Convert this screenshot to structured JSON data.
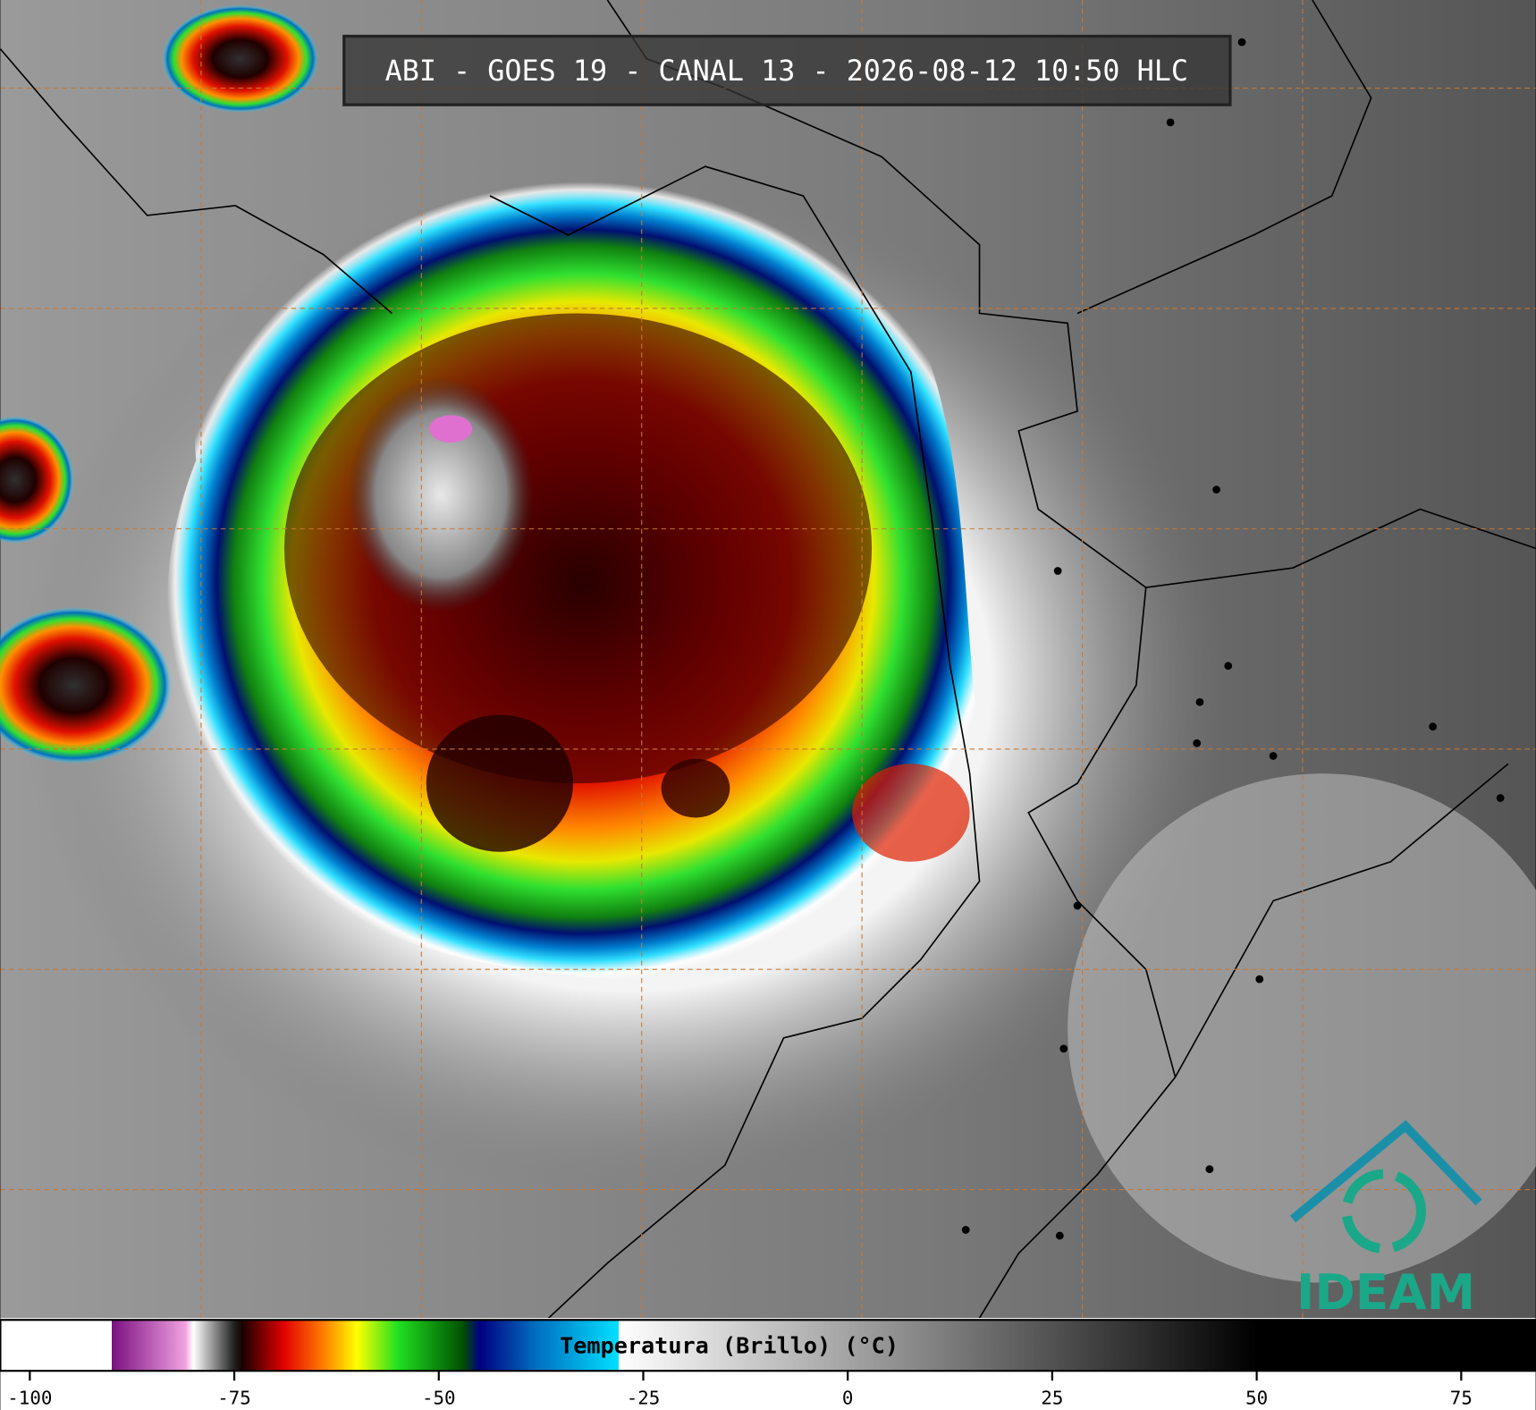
{
  "title": "ABI - GOES 19 - CANAL 13 - 2026-08-12 10:50 HLC",
  "logo": "IDEAM",
  "colorbar": {
    "label": "Temperatura (Brillo) (°C)",
    "xlim": [
      -103.6,
      84.1
    ],
    "xticks": [
      -100,
      -75,
      -50,
      -25,
      0,
      25,
      50,
      75
    ],
    "colorscale": [
      {
        "value": -103.6,
        "color": "#ffffff"
      },
      {
        "value": -90,
        "color": "#ffffff"
      },
      {
        "value": -90,
        "color": "#7a1080"
      },
      {
        "value": -81,
        "color": "#f0a0e0"
      },
      {
        "value": -80,
        "color": "#ffffff"
      },
      {
        "value": -75,
        "color": "#202020"
      },
      {
        "value": -74,
        "color": "#1a0000"
      },
      {
        "value": -69,
        "color": "#e00000"
      },
      {
        "value": -64,
        "color": "#ff8000"
      },
      {
        "value": -60,
        "color": "#ffff00"
      },
      {
        "value": -55,
        "color": "#20e020"
      },
      {
        "value": -47,
        "color": "#005000"
      },
      {
        "value": -45,
        "color": "#000080"
      },
      {
        "value": -38,
        "color": "#0070c0"
      },
      {
        "value": -28,
        "color": "#00e0ff"
      },
      {
        "value": -28,
        "color": "#ffffff"
      },
      {
        "value": 50,
        "color": "#000000"
      },
      {
        "value": 84.1,
        "color": "#000000"
      }
    ]
  }
}
